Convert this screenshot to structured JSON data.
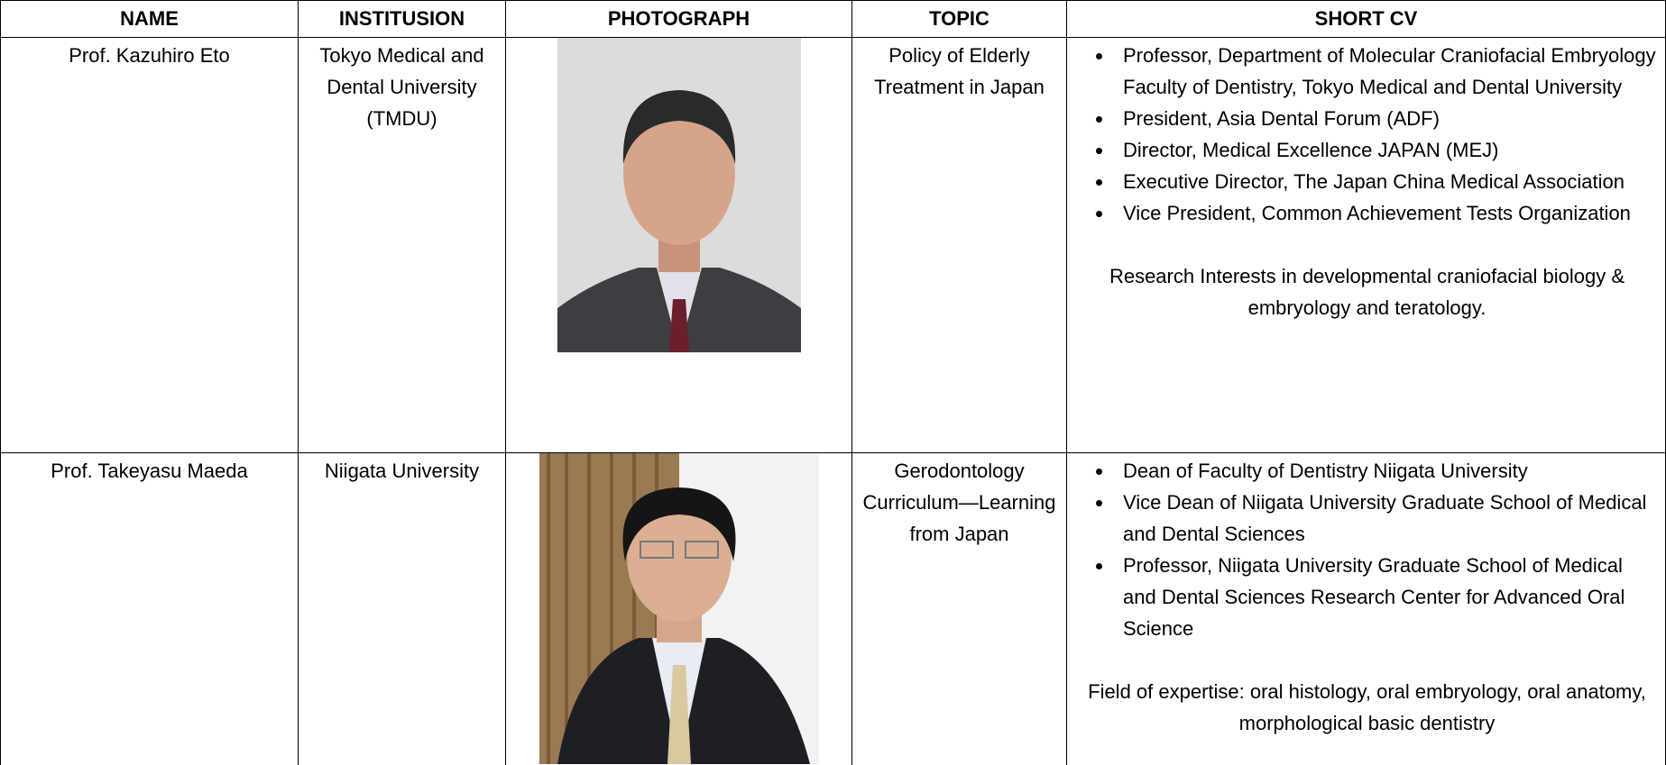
{
  "table": {
    "header": [
      "NAME",
      "INSTITUSION",
      "PHOTOGRAPH",
      "TOPIC",
      "SHORT CV"
    ],
    "rows": [
      {
        "name": "Prof. Kazuhiro Eto",
        "institution": "Tokyo Medical and Dental University (TMDU)",
        "topic": "Policy of Elderly Treatment in Japan",
        "cv": [
          "Professor, Department of  Molecular Craniofacial Embryology Faculty of Dentistry, Tokyo Medical and Dental University",
          "President, Asia Dental Forum (ADF)",
          "Director, Medical Excellence JAPAN (MEJ)",
          "Executive Director, The Japan China Medical Association",
          "Vice President, Common Achievement Tests Organization"
        ],
        "note": "Research Interests in developmental craniofacial biology & embryology and teratology."
      },
      {
        "name": "Prof. Takeyasu Maeda",
        "institution": "Niigata University",
        "topic": "Gerodontology Curriculum—Learning from Japan",
        "cv": [
          "Dean of Faculty of Dentistry Niigata University",
          "Vice Dean of Niigata University Graduate School of Medical and Dental Sciences",
          "Professor, Niigata University Graduate School of Medical and Dental Sciences Research Center for Advanced Oral Science"
        ],
        "note": "Field of expertise: oral histology, oral embryology, oral anatomy, morphological basic dentistry"
      }
    ]
  }
}
